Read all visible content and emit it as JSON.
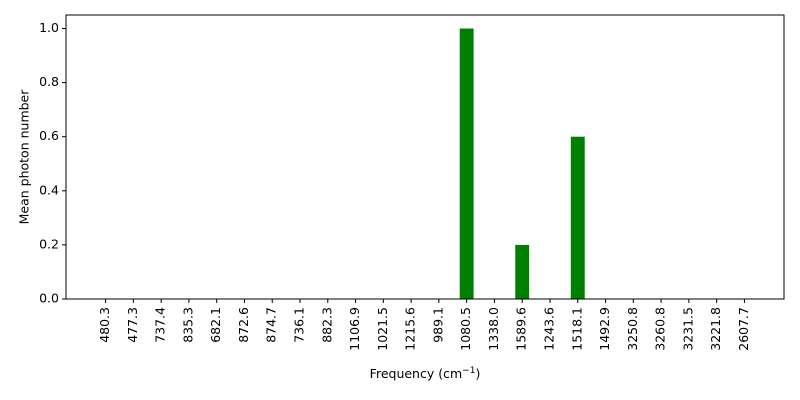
{
  "chart_data": {
    "type": "bar",
    "title": "",
    "xlabel": "Frequency (cm",
    "xlabel_sup": "−1",
    "xlabel_suffix": ")",
    "ylabel": "Mean photon number",
    "categories": [
      "480.3",
      "477.3",
      "737.4",
      "835.3",
      "682.1",
      "872.6",
      "874.7",
      "736.1",
      "882.3",
      "1106.9",
      "1021.5",
      "1215.6",
      "989.1",
      "1080.5",
      "1338.0",
      "1589.6",
      "1243.6",
      "1518.1",
      "1492.9",
      "3250.8",
      "3260.8",
      "3231.5",
      "3221.8",
      "2607.7"
    ],
    "values": [
      0,
      0,
      0,
      0,
      0,
      0,
      0,
      0,
      0,
      0,
      0,
      0,
      0,
      1.0,
      0,
      0.2,
      0,
      0.6,
      0,
      0,
      0,
      0,
      0,
      0
    ],
    "ylim": [
      0,
      1.05
    ],
    "yticks": [
      0.0,
      0.2,
      0.4,
      0.6,
      0.8,
      1.0
    ],
    "ytick_labels": [
      "0.0",
      "0.2",
      "0.4",
      "0.6",
      "0.8",
      "1.0"
    ],
    "grid": false,
    "bar_color": "#008000"
  }
}
